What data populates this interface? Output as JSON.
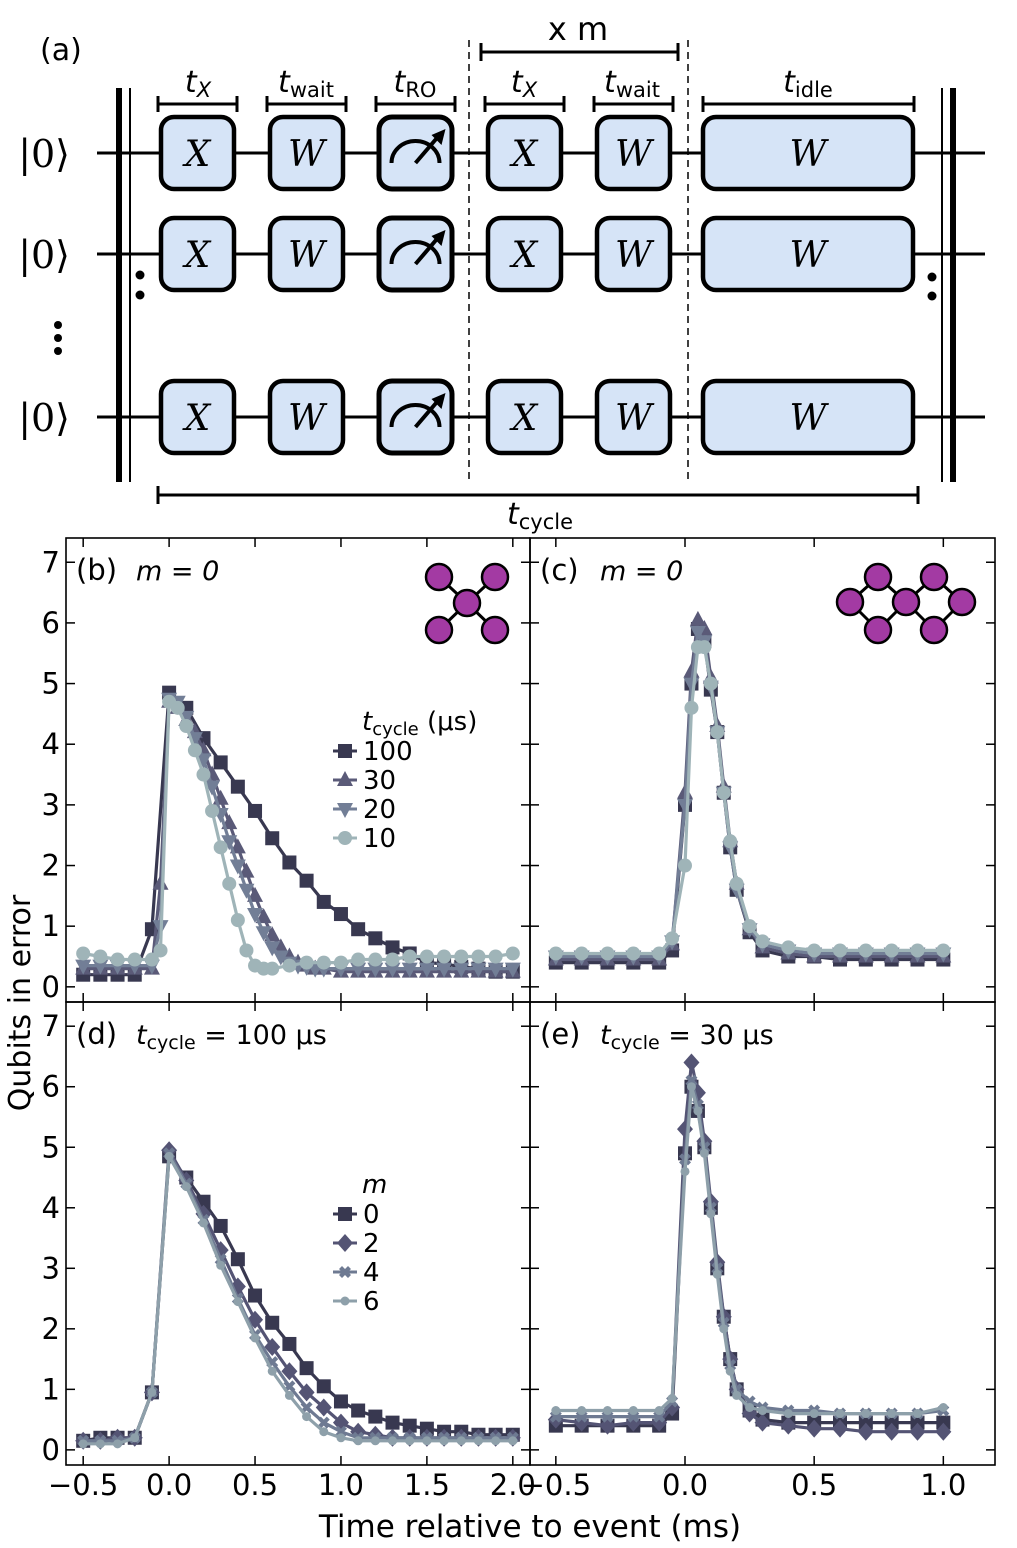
{
  "circuit": {
    "panel_label": "(a)",
    "ket": "|0⟩",
    "gate_x": "X",
    "gate_w": "W",
    "repeat_label": "x m",
    "labels": {
      "tx": {
        "main": "t",
        "sub": "X"
      },
      "twait": {
        "main": "t",
        "sub": "wait"
      },
      "tro": {
        "main": "t",
        "sub": "RO"
      },
      "tidle": {
        "main": "t",
        "sub": "idle"
      },
      "tcycle": {
        "main": "t",
        "sub": "cycle"
      }
    }
  },
  "axes": {
    "ylabel": "Qubits in error",
    "xlabel": "Time relative to event (ms)",
    "yticks": [
      "0",
      "1",
      "2",
      "3",
      "4",
      "5",
      "6",
      "7"
    ],
    "xticks_left": [
      "−0.5",
      "0.0",
      "0.5",
      "1.0",
      "1.5",
      "2.0"
    ],
    "xticks_right": [
      "−0.5",
      "0.0",
      "0.5",
      "1.0"
    ]
  },
  "colors": {
    "s100": "#383850",
    "s30": "#5a5a78",
    "s20": "#727e96",
    "s10": "#9fb4b8",
    "m0": "#383850",
    "m2": "#545474",
    "m4": "#6e7a92",
    "m6": "#8ea0aa",
    "qubit": "#a33aa3"
  },
  "chart_data": [
    {
      "id": "b",
      "type": "line",
      "panel_label": "(b)",
      "annotation": "m = 0",
      "legend_title": "t_cycle (μs)",
      "legend_title_main": "t",
      "legend_title_sub": "cycle",
      "legend_title_unit": "(μs)",
      "xlim": [
        -0.6,
        2.1
      ],
      "ylim": [
        -0.25,
        7.4
      ],
      "series": [
        {
          "name": "100",
          "marker": "square",
          "color": "s100",
          "x": [
            -0.5,
            -0.4,
            -0.3,
            -0.2,
            -0.1,
            0.0,
            0.1,
            0.2,
            0.3,
            0.4,
            0.5,
            0.6,
            0.7,
            0.8,
            0.9,
            1.0,
            1.1,
            1.2,
            1.3,
            1.4,
            1.5,
            1.6,
            1.7,
            1.8,
            1.9,
            2.0
          ],
          "y": [
            0.2,
            0.2,
            0.2,
            0.2,
            0.95,
            4.85,
            4.6,
            4.1,
            3.7,
            3.3,
            2.9,
            2.45,
            2.05,
            1.75,
            1.4,
            1.2,
            0.95,
            0.8,
            0.65,
            0.55,
            0.4,
            0.38,
            0.33,
            0.3,
            0.25,
            0.25
          ]
        },
        {
          "name": "30",
          "marker": "triangle-up",
          "color": "s30",
          "x": [
            -0.5,
            -0.4,
            -0.3,
            -0.2,
            -0.1,
            -0.05,
            0.0,
            0.05,
            0.1,
            0.15,
            0.2,
            0.25,
            0.3,
            0.35,
            0.4,
            0.45,
            0.5,
            0.55,
            0.6,
            0.65,
            0.7,
            0.75,
            0.8,
            0.85,
            0.9,
            1.0,
            1.1,
            1.2,
            1.3,
            1.4,
            1.5,
            1.6,
            1.7,
            1.8,
            1.9,
            2.0
          ],
          "y": [
            0.3,
            0.3,
            0.3,
            0.3,
            0.3,
            1.7,
            4.7,
            4.6,
            4.4,
            4.2,
            3.9,
            3.5,
            3.1,
            2.7,
            2.3,
            1.9,
            1.5,
            1.15,
            0.85,
            0.65,
            0.5,
            0.4,
            0.35,
            0.3,
            0.3,
            0.25,
            0.25,
            0.25,
            0.25,
            0.25,
            0.25,
            0.25,
            0.25,
            0.25,
            0.25,
            0.25
          ]
        },
        {
          "name": "20",
          "marker": "triangle-down",
          "color": "s20",
          "x": [
            -0.5,
            -0.4,
            -0.3,
            -0.2,
            -0.1,
            -0.05,
            0.0,
            0.05,
            0.1,
            0.15,
            0.2,
            0.25,
            0.3,
            0.35,
            0.4,
            0.45,
            0.5,
            0.55,
            0.6,
            0.65,
            0.7,
            0.75,
            0.8,
            0.85,
            0.9,
            1.0,
            1.1,
            1.2,
            1.3,
            1.4,
            1.5,
            1.6,
            1.7,
            1.8,
            1.9,
            2.0
          ],
          "y": [
            0.35,
            0.35,
            0.35,
            0.35,
            0.35,
            1.0,
            4.75,
            4.7,
            4.45,
            4.1,
            3.75,
            3.3,
            2.85,
            2.4,
            2.0,
            1.6,
            1.2,
            0.9,
            0.65,
            0.5,
            0.4,
            0.35,
            0.33,
            0.3,
            0.3,
            0.3,
            0.3,
            0.3,
            0.3,
            0.3,
            0.3,
            0.3,
            0.3,
            0.3,
            0.3,
            0.3
          ]
        },
        {
          "name": "10",
          "marker": "circle",
          "color": "s10",
          "x": [
            -0.5,
            -0.4,
            -0.3,
            -0.2,
            -0.1,
            -0.05,
            0.0,
            0.05,
            0.1,
            0.15,
            0.2,
            0.25,
            0.3,
            0.35,
            0.4,
            0.45,
            0.5,
            0.55,
            0.6,
            0.7,
            0.8,
            0.9,
            1.0,
            1.1,
            1.2,
            1.3,
            1.4,
            1.5,
            1.6,
            1.7,
            1.8,
            1.9,
            2.0
          ],
          "y": [
            0.55,
            0.5,
            0.45,
            0.45,
            0.45,
            0.6,
            4.7,
            4.6,
            4.3,
            3.9,
            3.5,
            2.9,
            2.3,
            1.7,
            1.1,
            0.6,
            0.35,
            0.3,
            0.3,
            0.35,
            0.4,
            0.4,
            0.4,
            0.45,
            0.45,
            0.45,
            0.5,
            0.5,
            0.5,
            0.5,
            0.5,
            0.5,
            0.55
          ]
        }
      ]
    },
    {
      "id": "c",
      "type": "line",
      "panel_label": "(c)",
      "annotation": "m = 0",
      "xlim": [
        -0.6,
        1.2
      ],
      "ylim": [
        -0.25,
        7.4
      ],
      "series": [
        {
          "name": "100",
          "marker": "square",
          "color": "s100",
          "x": [
            -0.5,
            -0.4,
            -0.3,
            -0.2,
            -0.1,
            -0.05,
            0.0,
            0.025,
            0.05,
            0.075,
            0.1,
            0.125,
            0.15,
            0.175,
            0.2,
            0.25,
            0.3,
            0.4,
            0.5,
            0.6,
            0.7,
            0.8,
            0.9,
            1.0
          ],
          "y": [
            0.4,
            0.4,
            0.4,
            0.4,
            0.4,
            0.6,
            3.0,
            5.0,
            5.9,
            5.7,
            4.9,
            4.2,
            3.2,
            2.3,
            1.6,
            0.9,
            0.6,
            0.5,
            0.5,
            0.45,
            0.45,
            0.45,
            0.45,
            0.45
          ]
        },
        {
          "name": "30",
          "marker": "triangle-up",
          "color": "s30",
          "x": [
            -0.5,
            -0.4,
            -0.3,
            -0.2,
            -0.1,
            -0.05,
            0.0,
            0.025,
            0.05,
            0.075,
            0.1,
            0.125,
            0.15,
            0.175,
            0.2,
            0.25,
            0.3,
            0.4,
            0.5,
            0.6,
            0.7,
            0.8,
            0.9,
            1.0
          ],
          "y": [
            0.45,
            0.45,
            0.45,
            0.45,
            0.45,
            0.7,
            3.2,
            5.2,
            6.05,
            5.9,
            5.1,
            4.3,
            3.3,
            2.4,
            1.7,
            0.95,
            0.65,
            0.55,
            0.5,
            0.5,
            0.5,
            0.5,
            0.5,
            0.5
          ]
        },
        {
          "name": "20",
          "marker": "triangle-down",
          "color": "s20",
          "x": [
            -0.5,
            -0.4,
            -0.3,
            -0.2,
            -0.1,
            -0.05,
            0.0,
            0.025,
            0.05,
            0.075,
            0.1,
            0.125,
            0.15,
            0.175,
            0.2,
            0.25,
            0.3,
            0.4,
            0.5,
            0.6,
            0.7,
            0.8,
            0.9,
            1.0
          ],
          "y": [
            0.5,
            0.5,
            0.5,
            0.5,
            0.5,
            0.75,
            3.0,
            5.0,
            5.85,
            5.7,
            4.95,
            4.2,
            3.2,
            2.3,
            1.6,
            0.95,
            0.7,
            0.6,
            0.55,
            0.55,
            0.55,
            0.55,
            0.55,
            0.55
          ]
        },
        {
          "name": "10",
          "marker": "circle",
          "color": "s10",
          "x": [
            -0.5,
            -0.4,
            -0.3,
            -0.2,
            -0.1,
            -0.05,
            0.0,
            0.025,
            0.05,
            0.075,
            0.1,
            0.125,
            0.15,
            0.175,
            0.2,
            0.25,
            0.3,
            0.4,
            0.5,
            0.6,
            0.7,
            0.8,
            0.9,
            1.0
          ],
          "y": [
            0.55,
            0.55,
            0.55,
            0.55,
            0.55,
            0.8,
            2.0,
            4.6,
            5.6,
            5.6,
            5.0,
            4.2,
            3.2,
            2.4,
            1.7,
            1.0,
            0.75,
            0.65,
            0.6,
            0.6,
            0.6,
            0.6,
            0.6,
            0.6
          ]
        }
      ]
    },
    {
      "id": "d",
      "type": "line",
      "panel_label": "(d)",
      "annotation": "t_cycle = 100 μs",
      "annotation_main": "t",
      "annotation_sub": "cycle",
      "annotation_rest": " = 100 μs",
      "legend_title": "m",
      "xlim": [
        -0.6,
        2.1
      ],
      "ylim": [
        -0.25,
        7.4
      ],
      "series": [
        {
          "name": "0",
          "marker": "square",
          "color": "m0",
          "x": [
            -0.5,
            -0.4,
            -0.3,
            -0.2,
            -0.1,
            0.0,
            0.1,
            0.2,
            0.3,
            0.4,
            0.5,
            0.6,
            0.7,
            0.8,
            0.9,
            1.0,
            1.1,
            1.2,
            1.3,
            1.4,
            1.5,
            1.6,
            1.7,
            1.8,
            1.9,
            2.0
          ],
          "y": [
            0.15,
            0.2,
            0.2,
            0.2,
            0.95,
            4.85,
            4.5,
            4.1,
            3.7,
            3.15,
            2.55,
            2.1,
            1.75,
            1.35,
            1.05,
            0.8,
            0.65,
            0.55,
            0.45,
            0.4,
            0.35,
            0.3,
            0.3,
            0.25,
            0.25,
            0.25
          ]
        },
        {
          "name": "2",
          "marker": "diamond",
          "color": "m2",
          "x": [
            -0.5,
            -0.4,
            -0.3,
            -0.2,
            -0.1,
            0.0,
            0.1,
            0.2,
            0.3,
            0.4,
            0.5,
            0.6,
            0.7,
            0.8,
            0.9,
            1.0,
            1.1,
            1.2,
            1.3,
            1.4,
            1.5,
            1.6,
            1.7,
            1.8,
            1.9,
            2.0
          ],
          "y": [
            0.15,
            0.15,
            0.2,
            0.2,
            0.95,
            4.95,
            4.45,
            3.9,
            3.3,
            2.7,
            2.15,
            1.7,
            1.3,
            0.95,
            0.7,
            0.45,
            0.3,
            0.25,
            0.2,
            0.2,
            0.2,
            0.2,
            0.2,
            0.2,
            0.2,
            0.2
          ]
        },
        {
          "name": "4",
          "marker": "cross",
          "color": "m4",
          "x": [
            -0.5,
            -0.4,
            -0.3,
            -0.2,
            -0.1,
            0.0,
            0.1,
            0.2,
            0.3,
            0.4,
            0.5,
            0.6,
            0.7,
            0.8,
            0.9,
            1.0,
            1.1,
            1.2,
            1.3,
            1.4,
            1.5,
            1.6,
            1.7,
            1.8,
            1.9,
            2.0
          ],
          "y": [
            0.15,
            0.15,
            0.15,
            0.2,
            0.95,
            4.9,
            4.4,
            3.8,
            3.15,
            2.5,
            1.9,
            1.45,
            1.05,
            0.7,
            0.45,
            0.3,
            0.2,
            0.2,
            0.2,
            0.2,
            0.2,
            0.2,
            0.2,
            0.2,
            0.2,
            0.2
          ]
        },
        {
          "name": "6",
          "marker": "dot",
          "color": "m6",
          "x": [
            -0.5,
            -0.4,
            -0.3,
            -0.2,
            -0.1,
            0.0,
            0.1,
            0.2,
            0.3,
            0.4,
            0.5,
            0.6,
            0.7,
            0.8,
            0.9,
            1.0,
            1.1,
            1.2,
            1.3,
            1.4,
            1.5,
            1.6,
            1.7,
            1.8,
            1.9,
            2.0
          ],
          "y": [
            0.1,
            0.1,
            0.1,
            0.2,
            0.95,
            4.85,
            4.35,
            3.75,
            3.05,
            2.45,
            1.85,
            1.3,
            0.9,
            0.55,
            0.3,
            0.2,
            0.15,
            0.15,
            0.15,
            0.15,
            0.15,
            0.15,
            0.15,
            0.15,
            0.15,
            0.15
          ]
        }
      ]
    },
    {
      "id": "e",
      "type": "line",
      "panel_label": "(e)",
      "annotation": "t_cycle = 30 μs",
      "annotation_main": "t",
      "annotation_sub": "cycle",
      "annotation_rest": " = 30 μs",
      "xlim": [
        -0.6,
        1.2
      ],
      "ylim": [
        -0.25,
        7.4
      ],
      "series": [
        {
          "name": "0",
          "marker": "square",
          "color": "m0",
          "x": [
            -0.5,
            -0.4,
            -0.3,
            -0.2,
            -0.1,
            -0.05,
            0.0,
            0.025,
            0.05,
            0.075,
            0.1,
            0.125,
            0.15,
            0.175,
            0.2,
            0.25,
            0.3,
            0.4,
            0.5,
            0.6,
            0.7,
            0.8,
            0.9,
            1.0
          ],
          "y": [
            0.4,
            0.4,
            0.4,
            0.4,
            0.4,
            0.6,
            4.9,
            6.0,
            5.6,
            5.0,
            4.0,
            3.0,
            2.2,
            1.5,
            1.0,
            0.65,
            0.5,
            0.45,
            0.45,
            0.45,
            0.45,
            0.45,
            0.45,
            0.45
          ]
        },
        {
          "name": "2",
          "marker": "diamond",
          "color": "m2",
          "x": [
            -0.5,
            -0.4,
            -0.3,
            -0.2,
            -0.1,
            -0.05,
            0.0,
            0.025,
            0.05,
            0.075,
            0.1,
            0.125,
            0.15,
            0.175,
            0.2,
            0.25,
            0.3,
            0.4,
            0.5,
            0.6,
            0.7,
            0.8,
            0.9,
            1.0
          ],
          "y": [
            0.5,
            0.45,
            0.4,
            0.45,
            0.45,
            0.7,
            5.3,
            6.4,
            5.9,
            5.1,
            4.1,
            3.1,
            2.2,
            1.5,
            1.0,
            0.6,
            0.45,
            0.4,
            0.35,
            0.35,
            0.3,
            0.3,
            0.3,
            0.3
          ]
        },
        {
          "name": "4",
          "marker": "cross",
          "color": "m4",
          "x": [
            -0.5,
            -0.4,
            -0.3,
            -0.2,
            -0.1,
            -0.05,
            0.0,
            0.025,
            0.05,
            0.075,
            0.1,
            0.125,
            0.15,
            0.175,
            0.2,
            0.25,
            0.3,
            0.4,
            0.5,
            0.6,
            0.7,
            0.8,
            0.9,
            1.0
          ],
          "y": [
            0.55,
            0.55,
            0.55,
            0.55,
            0.55,
            0.8,
            4.8,
            6.1,
            5.7,
            5.0,
            4.0,
            3.0,
            2.1,
            1.4,
            1.0,
            0.8,
            0.7,
            0.65,
            0.65,
            0.6,
            0.6,
            0.6,
            0.6,
            0.65
          ]
        },
        {
          "name": "6",
          "marker": "dot",
          "color": "m6",
          "x": [
            -0.5,
            -0.4,
            -0.3,
            -0.2,
            -0.1,
            -0.05,
            0.0,
            0.025,
            0.05,
            0.075,
            0.1,
            0.125,
            0.15,
            0.175,
            0.2,
            0.25,
            0.3,
            0.4,
            0.5,
            0.6,
            0.7,
            0.8,
            0.9,
            1.0
          ],
          "y": [
            0.65,
            0.65,
            0.65,
            0.65,
            0.65,
            0.85,
            4.6,
            6.0,
            5.6,
            4.9,
            3.9,
            2.9,
            2.0,
            1.3,
            0.9,
            0.7,
            0.65,
            0.6,
            0.6,
            0.6,
            0.6,
            0.6,
            0.6,
            0.7
          ]
        }
      ]
    }
  ]
}
